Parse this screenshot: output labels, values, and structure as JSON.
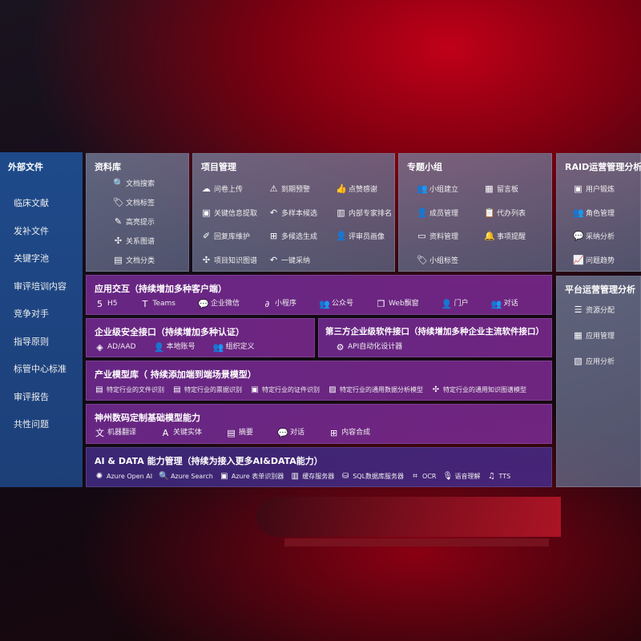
{
  "sidebar": {
    "title": "外部文件",
    "items": [
      "临床文献",
      "发补文件",
      "关键字池",
      "审评培训内容",
      "竞争对手",
      "指导原则",
      "标管中心标准",
      "审评报告",
      "共性问题"
    ]
  },
  "panels": {
    "library": {
      "title": "资料库",
      "items": [
        {
          "icon": "doc-search-icon",
          "g": "🔍",
          "label": "文档搜索"
        },
        {
          "icon": "tag-icon",
          "g": "🏷",
          "label": "文档标签"
        },
        {
          "icon": "pen-icon",
          "g": "✎",
          "label": "高亮提示"
        },
        {
          "icon": "graph-icon",
          "g": "✣",
          "label": "关系图谱"
        },
        {
          "icon": "doc-stack-icon",
          "g": "▤",
          "label": "文档分类"
        }
      ]
    },
    "project": {
      "title": "项目管理",
      "items": [
        {
          "icon": "upload-cloud-icon",
          "g": "☁",
          "label": "问卷上传"
        },
        {
          "icon": "alarm-icon",
          "g": "⚠",
          "label": "到期预警"
        },
        {
          "icon": "thumbs-up-icon",
          "g": "👍",
          "label": "点赞感谢"
        },
        {
          "icon": "extract-icon",
          "g": "▣",
          "label": "关键信息提取"
        },
        {
          "icon": "reply-icon",
          "g": "↶",
          "label": "多样本候选"
        },
        {
          "icon": "ranking-icon",
          "g": "▥",
          "label": "内部专家排名"
        },
        {
          "icon": "edit-icon",
          "g": "✐",
          "label": "回复库维护"
        },
        {
          "icon": "puzzle-icon",
          "g": "⊞",
          "label": "多候选生成"
        },
        {
          "icon": "user-icon",
          "g": "👤",
          "label": "评审员画像"
        },
        {
          "icon": "knowledge-graph-icon",
          "g": "✣",
          "label": "项目知识图谱"
        },
        {
          "icon": "reply-icon",
          "g": "↶",
          "label": "一键采纳"
        }
      ]
    },
    "group": {
      "title": "专题小组",
      "items": [
        {
          "icon": "group-icon",
          "g": "👥",
          "label": "小组建立"
        },
        {
          "icon": "bbs-icon",
          "g": "▦",
          "label": "留言板"
        },
        {
          "icon": "add-member-icon",
          "g": "👤",
          "label": "成员管理"
        },
        {
          "icon": "clipboard-icon",
          "g": "📋",
          "label": "代办列表"
        },
        {
          "icon": "folder-icon",
          "g": "▭",
          "label": "资料管理"
        },
        {
          "icon": "bell-icon",
          "g": "🔔",
          "label": "事项提醒"
        },
        {
          "icon": "tag-icon",
          "g": "🏷",
          "label": "小组标签"
        }
      ]
    },
    "raid": {
      "title": "RAID运营管理分析",
      "items": [
        {
          "icon": "id-card-icon",
          "g": "▣",
          "label": "用户锻炼"
        },
        {
          "icon": "users-icon",
          "g": "👥",
          "label": "角色管理"
        },
        {
          "icon": "qa-icon",
          "g": "💬",
          "label": "采纳分析"
        },
        {
          "icon": "trend-icon",
          "g": "📈",
          "label": "问题趋势"
        }
      ]
    },
    "platform": {
      "title": "平台运营管理分析",
      "items": [
        {
          "icon": "list-icon",
          "g": "☰",
          "label": "资源分配"
        },
        {
          "icon": "apps-icon",
          "g": "▦",
          "label": "应用管理"
        },
        {
          "icon": "analytics-icon",
          "g": "▧",
          "label": "应用分析"
        }
      ]
    },
    "interaction": {
      "title": "应用交互（持续增加多种客户端）",
      "items": [
        {
          "icon": "html5-icon",
          "g": "5",
          "label": "H5"
        },
        {
          "icon": "teams-icon",
          "g": "T",
          "label": "Teams"
        },
        {
          "icon": "wechat-icon",
          "g": "💬",
          "label": "企业微信"
        },
        {
          "icon": "mini-program-icon",
          "g": "∂",
          "label": "小程序"
        },
        {
          "icon": "official-account-icon",
          "g": "👥",
          "label": "公众号"
        },
        {
          "icon": "window-icon",
          "g": "❐",
          "label": "Web飘窗"
        },
        {
          "icon": "portal-icon",
          "g": "👤",
          "label": "门户"
        },
        {
          "icon": "chat-users-icon",
          "g": "👥",
          "label": "对话"
        }
      ]
    },
    "security": {
      "title": "企业级安全接口（持续增加多种认证）",
      "items": [
        {
          "icon": "ad-icon",
          "g": "◈",
          "label": "AD/AAD"
        },
        {
          "icon": "local-account-icon",
          "g": "👤",
          "label": "本地账号"
        },
        {
          "icon": "org-icon",
          "g": "👥",
          "label": "组织定义"
        }
      ]
    },
    "thirdparty": {
      "title": "第三方企业级软件接口（持续增加多种企业主流软件接口）",
      "items": [
        {
          "icon": "api-gear-icon",
          "g": "⚙",
          "label": "API自动化设计器"
        }
      ]
    },
    "industry": {
      "title": "产业模型库（ 持续添加端到端场景模型）",
      "items": [
        {
          "icon": "file-icon",
          "g": "▤",
          "label": "特定行业的文件识别"
        },
        {
          "icon": "receipt-icon",
          "g": "▤",
          "label": "特定行业的票据识别"
        },
        {
          "icon": "id-card-icon",
          "g": "▣",
          "label": "特定行业的证件识别"
        },
        {
          "icon": "chart-icon",
          "g": "▨",
          "label": "特定行业的通用数据分析模型"
        },
        {
          "icon": "network-icon",
          "g": "✣",
          "label": "特定行业的通用知识图谱模型"
        }
      ]
    },
    "foundation": {
      "title": "神州数码定制基础模型能力",
      "items": [
        {
          "icon": "translate-icon",
          "g": "文",
          "label": "机器翻译"
        },
        {
          "icon": "entity-icon",
          "g": "A",
          "label": "关键实体"
        },
        {
          "icon": "summary-icon",
          "g": "▤",
          "label": "摘要"
        },
        {
          "icon": "chat-bubble-icon",
          "g": "💬",
          "label": "对话"
        },
        {
          "icon": "compose-icon",
          "g": "⊞",
          "label": "内容合成"
        }
      ]
    },
    "aidata": {
      "title": "AI & DATA 能力管理（持续为接入更多AI&DATA能力）",
      "items": [
        {
          "icon": "openai-icon",
          "g": "✺",
          "label": "Azure Open AI"
        },
        {
          "icon": "search-doc-icon",
          "g": "🔍",
          "label": "Azure Search"
        },
        {
          "icon": "form-recognizer-icon",
          "g": "▣",
          "label": "Azure 表单识别器"
        },
        {
          "icon": "cache-server-icon",
          "g": "▥",
          "label": "缓存服务器"
        },
        {
          "icon": "sql-db-icon",
          "g": "⛁",
          "label": "SQL数据库服务器"
        },
        {
          "icon": "ocr-icon",
          "g": "⌗",
          "label": "OCR"
        },
        {
          "icon": "speech-icon",
          "g": "🎙",
          "label": "语音理解"
        },
        {
          "icon": "tts-icon",
          "g": "♫",
          "label": "TTS"
        }
      ]
    }
  }
}
